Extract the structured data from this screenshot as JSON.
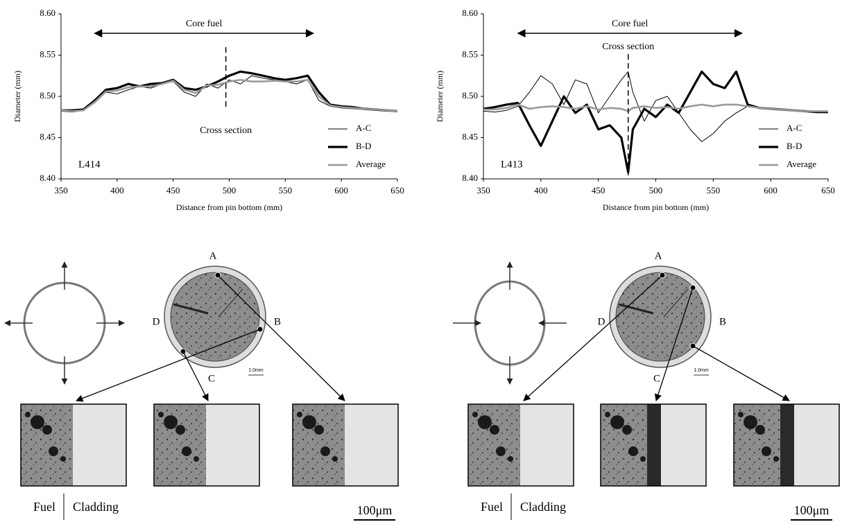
{
  "chart_data": [
    {
      "type": "line",
      "x_label": "Distance from pin bottom (mm)",
      "y_label": "Diameter (mm)",
      "sample": "L414",
      "core_fuel": {
        "label": "Core fuel",
        "range": [
          380,
          575
        ]
      },
      "cross_section": {
        "label": "Cross section",
        "x": 497
      },
      "x": [
        350,
        360,
        370,
        380,
        390,
        400,
        410,
        420,
        430,
        440,
        450,
        460,
        470,
        480,
        490,
        500,
        510,
        520,
        530,
        540,
        550,
        560,
        570,
        580,
        590,
        600,
        610,
        620,
        630,
        640,
        650
      ],
      "series": [
        {
          "name": "A-C",
          "color": "#000000",
          "values": [
            8.482,
            8.481,
            8.483,
            8.492,
            8.505,
            8.503,
            8.508,
            8.512,
            8.51,
            8.515,
            8.518,
            8.505,
            8.5,
            8.515,
            8.51,
            8.52,
            8.515,
            8.525,
            8.522,
            8.52,
            8.518,
            8.515,
            8.52,
            8.495,
            8.488,
            8.486,
            8.485,
            8.484,
            8.483,
            8.482,
            8.482
          ]
        },
        {
          "name": "B-D",
          "color": "#000000",
          "values": [
            8.483,
            8.483,
            8.484,
            8.495,
            8.508,
            8.51,
            8.515,
            8.512,
            8.515,
            8.516,
            8.52,
            8.51,
            8.508,
            8.512,
            8.518,
            8.525,
            8.53,
            8.528,
            8.525,
            8.522,
            8.52,
            8.522,
            8.525,
            8.505,
            8.49,
            8.488,
            8.487,
            8.485,
            8.484,
            8.483,
            8.482
          ]
        },
        {
          "name": "Average",
          "color": "#999999",
          "values": [
            8.483,
            8.482,
            8.483,
            8.493,
            8.506,
            8.507,
            8.511,
            8.512,
            8.512,
            8.515,
            8.519,
            8.508,
            8.504,
            8.513,
            8.514,
            8.518,
            8.52,
            8.518,
            8.518,
            8.519,
            8.518,
            8.518,
            8.52,
            8.5,
            8.489,
            8.487,
            8.486,
            8.485,
            8.484,
            8.483,
            8.482
          ]
        }
      ],
      "xlim": [
        350,
        650
      ],
      "xticks": [
        350,
        400,
        450,
        500,
        550,
        600,
        650
      ],
      "ylim": [
        8.4,
        8.6
      ],
      "yticks": [
        {
          "value": 8.4,
          "label": "8.40"
        },
        8.45,
        {
          "value": 8.5,
          "label": "8.50"
        },
        8.55,
        {
          "value": 8.6,
          "label": "8.60"
        }
      ],
      "legend": "lower right"
    },
    {
      "type": "line",
      "x_label": "Distance from pin bottom  (mm)",
      "y_label": "Diameter  (mm)",
      "sample": "L413",
      "core_fuel": {
        "label": "Core fuel",
        "range": [
          380,
          575
        ]
      },
      "cross_section": {
        "label": "Cross section",
        "x": 476
      },
      "x": [
        350,
        360,
        370,
        380,
        390,
        400,
        410,
        420,
        430,
        440,
        450,
        460,
        470,
        476,
        480,
        490,
        500,
        510,
        520,
        530,
        540,
        550,
        560,
        570,
        580,
        590,
        600,
        610,
        620,
        630,
        640,
        650
      ],
      "series": [
        {
          "name": "A-C",
          "color": "#000000",
          "values": [
            8.482,
            8.481,
            8.483,
            8.488,
            8.505,
            8.525,
            8.515,
            8.49,
            8.52,
            8.515,
            8.48,
            8.5,
            8.52,
            8.53,
            8.505,
            8.47,
            8.495,
            8.5,
            8.48,
            8.46,
            8.445,
            8.455,
            8.47,
            8.48,
            8.488,
            8.486,
            8.485,
            8.484,
            8.483,
            8.482,
            8.481,
            8.482
          ]
        },
        {
          "name": "B-D",
          "color": "#000000",
          "values": [
            8.485,
            8.487,
            8.49,
            8.492,
            8.465,
            8.44,
            8.47,
            8.5,
            8.48,
            8.49,
            8.46,
            8.465,
            8.45,
            8.408,
            8.46,
            8.485,
            8.475,
            8.49,
            8.48,
            8.505,
            8.53,
            8.515,
            8.51,
            8.53,
            8.49,
            8.486,
            8.485,
            8.484,
            8.483,
            8.482,
            8.481,
            8.481
          ]
        },
        {
          "name": "Average",
          "color": "#999999",
          "values": [
            8.484,
            8.484,
            8.486,
            8.49,
            8.485,
            8.487,
            8.488,
            8.487,
            8.485,
            8.488,
            8.484,
            8.486,
            8.485,
            8.482,
            8.486,
            8.488,
            8.486,
            8.487,
            8.485,
            8.488,
            8.49,
            8.488,
            8.49,
            8.49,
            8.488,
            8.486,
            8.485,
            8.484,
            8.483,
            8.482,
            8.482,
            8.482
          ]
        }
      ],
      "xlim": [
        350,
        650
      ],
      "xticks": [
        350,
        400,
        450,
        500,
        550,
        600,
        650
      ],
      "ylim": [
        8.4,
        8.6
      ],
      "yticks": [
        {
          "value": 8.4,
          "label": "8.40"
        },
        8.45,
        {
          "value": 8.5,
          "label": "8.50"
        },
        8.55,
        {
          "value": 8.6,
          "label": "8.60"
        }
      ],
      "legend": "lower right"
    }
  ],
  "panels": [
    {
      "positions": [
        "A",
        "B",
        "C",
        "D"
      ],
      "section_scale": "1.0mm",
      "fuel_label": "Fuel",
      "cladding_label": "Cladding",
      "scale_bar": "100μm"
    },
    {
      "positions": [
        "A",
        "B",
        "C",
        "D"
      ],
      "section_scale": "1.0mm",
      "fuel_label": "Fuel",
      "cladding_label": "Cladding",
      "scale_bar": "100μm"
    }
  ]
}
